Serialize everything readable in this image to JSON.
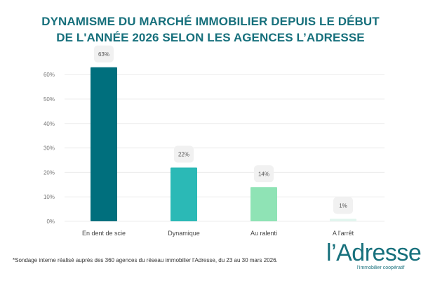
{
  "chart_data": {
    "type": "bar",
    "title": "DYNAMISME DU MARCHÉ IMMOBILIER DEPUIS LE DÉBUT DE L'ANNÉE 2026 SELON LES AGENCES L’ADRESSE",
    "title_lines": [
      "DYNAMISME DU MARCHÉ IMMOBILIER DEPUIS LE DÉBUT",
      "DE L'ANNÉE 2026 SELON LES AGENCES L’ADRESSE"
    ],
    "categories": [
      "En dent de scie",
      "Dynamique",
      "Au ralenti",
      "A l'arrêt"
    ],
    "values": [
      63,
      22,
      14,
      1
    ],
    "data_labels": [
      "63%",
      "22%",
      "14%",
      "1%"
    ],
    "colors": [
      "#006f7d",
      "#2bb9b6",
      "#8fe3b5",
      "#e2f5ee"
    ],
    "yticks": [
      "0%",
      "10%",
      "20%",
      "30%",
      "40%",
      "50%",
      "60%"
    ],
    "ylim": [
      0,
      60
    ],
    "xlabel": "",
    "ylabel": "",
    "grid": true,
    "legend": "none"
  },
  "footnote": "*Sondage interne réalisé auprès des 360 agences du réseau immobilier l'Adresse, du 23 au 30 mars 2026.",
  "logo": {
    "name": "l’Adresse",
    "tagline": "l'immobilier coopératif"
  }
}
